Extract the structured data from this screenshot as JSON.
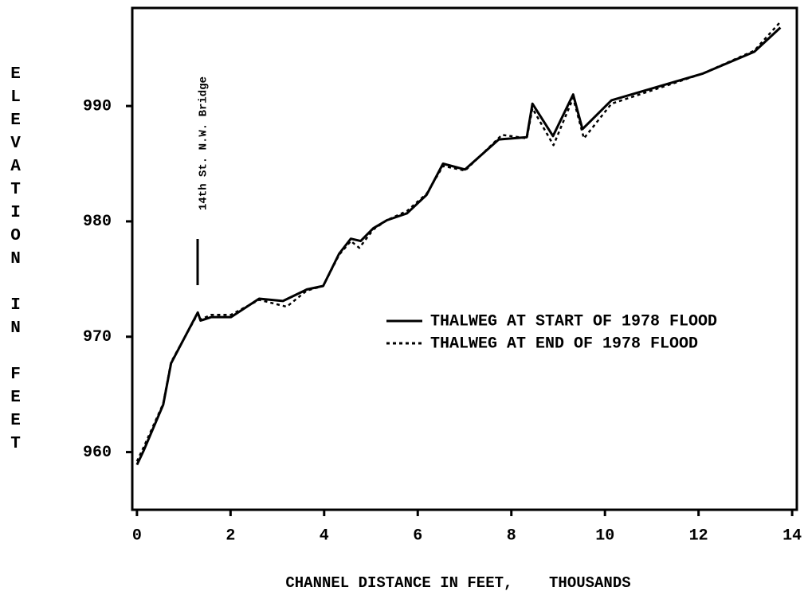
{
  "chart_data": {
    "type": "line",
    "annotation": "14th St. N.W. Bridge",
    "x_label": "CHANNEL DISTANCE IN FEET,    THOUSANDS",
    "y_label": "ELEVATION IN FEET",
    "xlim": [
      -0.1,
      14.1
    ],
    "ylim": [
      955,
      998.5
    ],
    "xticks": [
      0,
      2,
      4,
      6,
      8,
      10,
      12,
      14
    ],
    "yticks": [
      960,
      970,
      980,
      990
    ],
    "series": [
      {
        "name": "THALWEG AT START OF 1978 FLOOD",
        "color": "#000000",
        "dash": "solid",
        "x": [
          0,
          0.14,
          0.56,
          0.73,
          1.3,
          1.36,
          1.59,
          2.01,
          2.61,
          3.12,
          3.63,
          3.98,
          4.32,
          4.57,
          4.78,
          5.05,
          5.34,
          5.77,
          6.19,
          6.54,
          7.01,
          7.73,
          8.33,
          8.45,
          8.89,
          9.32,
          9.52,
          10.14,
          12.08,
          13.19,
          13.75
        ],
        "values": [
          958.9,
          960.1,
          964.1,
          967.7,
          972.1,
          971.4,
          971.7,
          971.7,
          973.3,
          973.1,
          974.1,
          974.4,
          977.2,
          978.5,
          978.3,
          979.4,
          980.1,
          980.7,
          982.3,
          985.0,
          984.5,
          987.1,
          987.3,
          990.2,
          987.4,
          991.0,
          988.0,
          990.5,
          992.8,
          994.7,
          996.8
        ]
      },
      {
        "name": "THALWEG AT END OF 1978 FLOOD",
        "color": "#000000",
        "dash": "dashed",
        "x": [
          0,
          0.14,
          0.56,
          0.73,
          1.3,
          1.36,
          1.59,
          2.01,
          2.61,
          3.2,
          3.63,
          3.98,
          4.32,
          4.57,
          4.75,
          5.05,
          5.34,
          5.77,
          6.19,
          6.54,
          7.01,
          7.8,
          8.33,
          8.45,
          8.9,
          9.32,
          9.55,
          10.14,
          12.08,
          13.19,
          13.75
        ],
        "values": [
          959.2,
          960.4,
          964.2,
          967.8,
          972.0,
          971.5,
          971.9,
          971.9,
          973.2,
          972.6,
          974.0,
          974.4,
          977.1,
          978.3,
          977.7,
          979.3,
          980.1,
          980.9,
          982.4,
          984.8,
          984.4,
          987.5,
          987.2,
          989.8,
          986.6,
          990.7,
          987.2,
          990.2,
          992.8,
          994.8,
          997.3
        ]
      }
    ]
  }
}
